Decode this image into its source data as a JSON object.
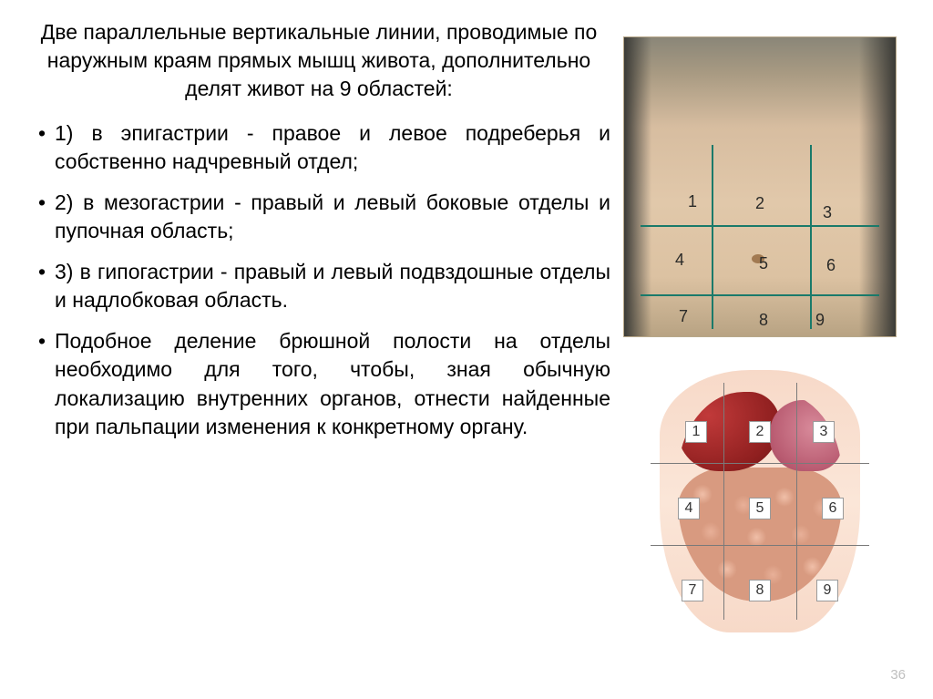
{
  "heading": "Две параллельные вертикальные линии, проводимые по наружным краям прямых мышц живота, дополнительно делят живот на 9 областей:",
  "bullets": [
    "1) в эпигастрии - правое и левое подреберья и собственно надчревный отдел;",
    "2) в мезогастрии - правый и левый боковые отделы и пупочная область;",
    "3) в гипогастрии - правый и левый подвздошные отделы и надлобковая область.",
    "Подобное деление брюшной полости на отделы необходимо для того, чтобы, зная обычную локализацию внутренних органов, отнести найденные при пальпации изменения к конкретному органу."
  ],
  "page_number": "36",
  "top_diagram": {
    "type": "infographic",
    "background_gradient": [
      "#8a8678",
      "#a89a82",
      "#d7bda0",
      "#e1c8aa",
      "#dcc2a2",
      "#b8a383"
    ],
    "grid_line_color": "#1a7a6a",
    "grid_line_width": 2,
    "label_color": "#2a2a28",
    "label_fontsize": 18,
    "cells": {
      "n1": "1",
      "n2": "2",
      "n3": "3",
      "n4": "4",
      "n5": "5",
      "n6": "6",
      "n7": "7",
      "n8": "8",
      "n9": "9"
    }
  },
  "bottom_diagram": {
    "type": "infographic",
    "skin_color": "#f7d9c8",
    "liver_colors": [
      "#c13a3a",
      "#8f1f1f",
      "#5a1010"
    ],
    "stomach_colors": [
      "#d88a9a",
      "#b85a70",
      "#8a3a52"
    ],
    "intestine_color": "#d89a80",
    "grid_line_color": "#7a7a7a",
    "grid_line_width": 1,
    "box_bg": "#ffffff",
    "box_border": "#9a9a9a",
    "box_fontsize": 16,
    "cells": {
      "n1": "1",
      "n2": "2",
      "n3": "3",
      "n4": "4",
      "n5": "5",
      "n6": "6",
      "n7": "7",
      "n8": "8",
      "n9": "9"
    }
  },
  "colors": {
    "text": "#000000",
    "page_number": "#bfbfbf",
    "background": "#ffffff"
  },
  "typography": {
    "heading_fontsize": 23,
    "body_fontsize": 23,
    "font_family": "Arial"
  }
}
